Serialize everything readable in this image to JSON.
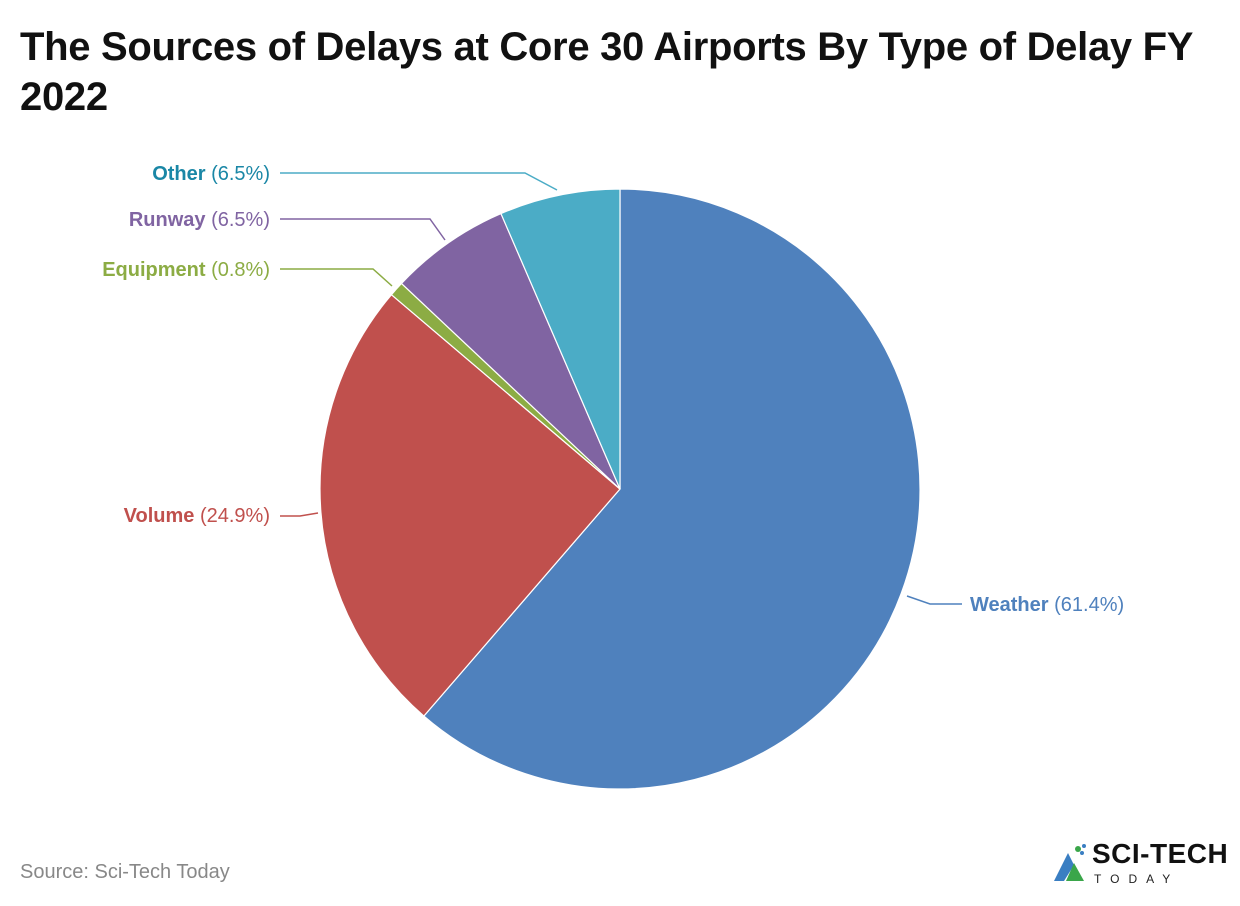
{
  "title": "The Sources of Delays at Core 30 Airports By Type of Delay FY 2022",
  "source": "Source: Sci-Tech Today",
  "logo": {
    "main": "SCI-TECH",
    "sub": "TODAY"
  },
  "chart_data": {
    "type": "pie",
    "title": "The Sources of Delays at Core 30 Airports By Type of Delay FY 2022",
    "start_angle": "top, clockwise",
    "slices": [
      {
        "label": "Weather",
        "value": 61.4,
        "display": "(61.4%)",
        "color": "#4f81bd",
        "label_color": "#4f81bd"
      },
      {
        "label": "Volume",
        "value": 24.9,
        "display": "(24.9%)",
        "color": "#c0504d",
        "label_color": "#c0504d"
      },
      {
        "label": "Equipment",
        "value": 0.8,
        "display": "(0.8%)",
        "color": "#8cac44",
        "label_color": "#8cac44"
      },
      {
        "label": "Runway",
        "value": 6.5,
        "display": "(6.5%)",
        "color": "#8064a2",
        "label_color": "#8064a2"
      },
      {
        "label": "Other",
        "value": 6.5,
        "display": "(6.5%)",
        "color": "#4bacc6",
        "label_color": "#1a87a6"
      }
    ]
  }
}
